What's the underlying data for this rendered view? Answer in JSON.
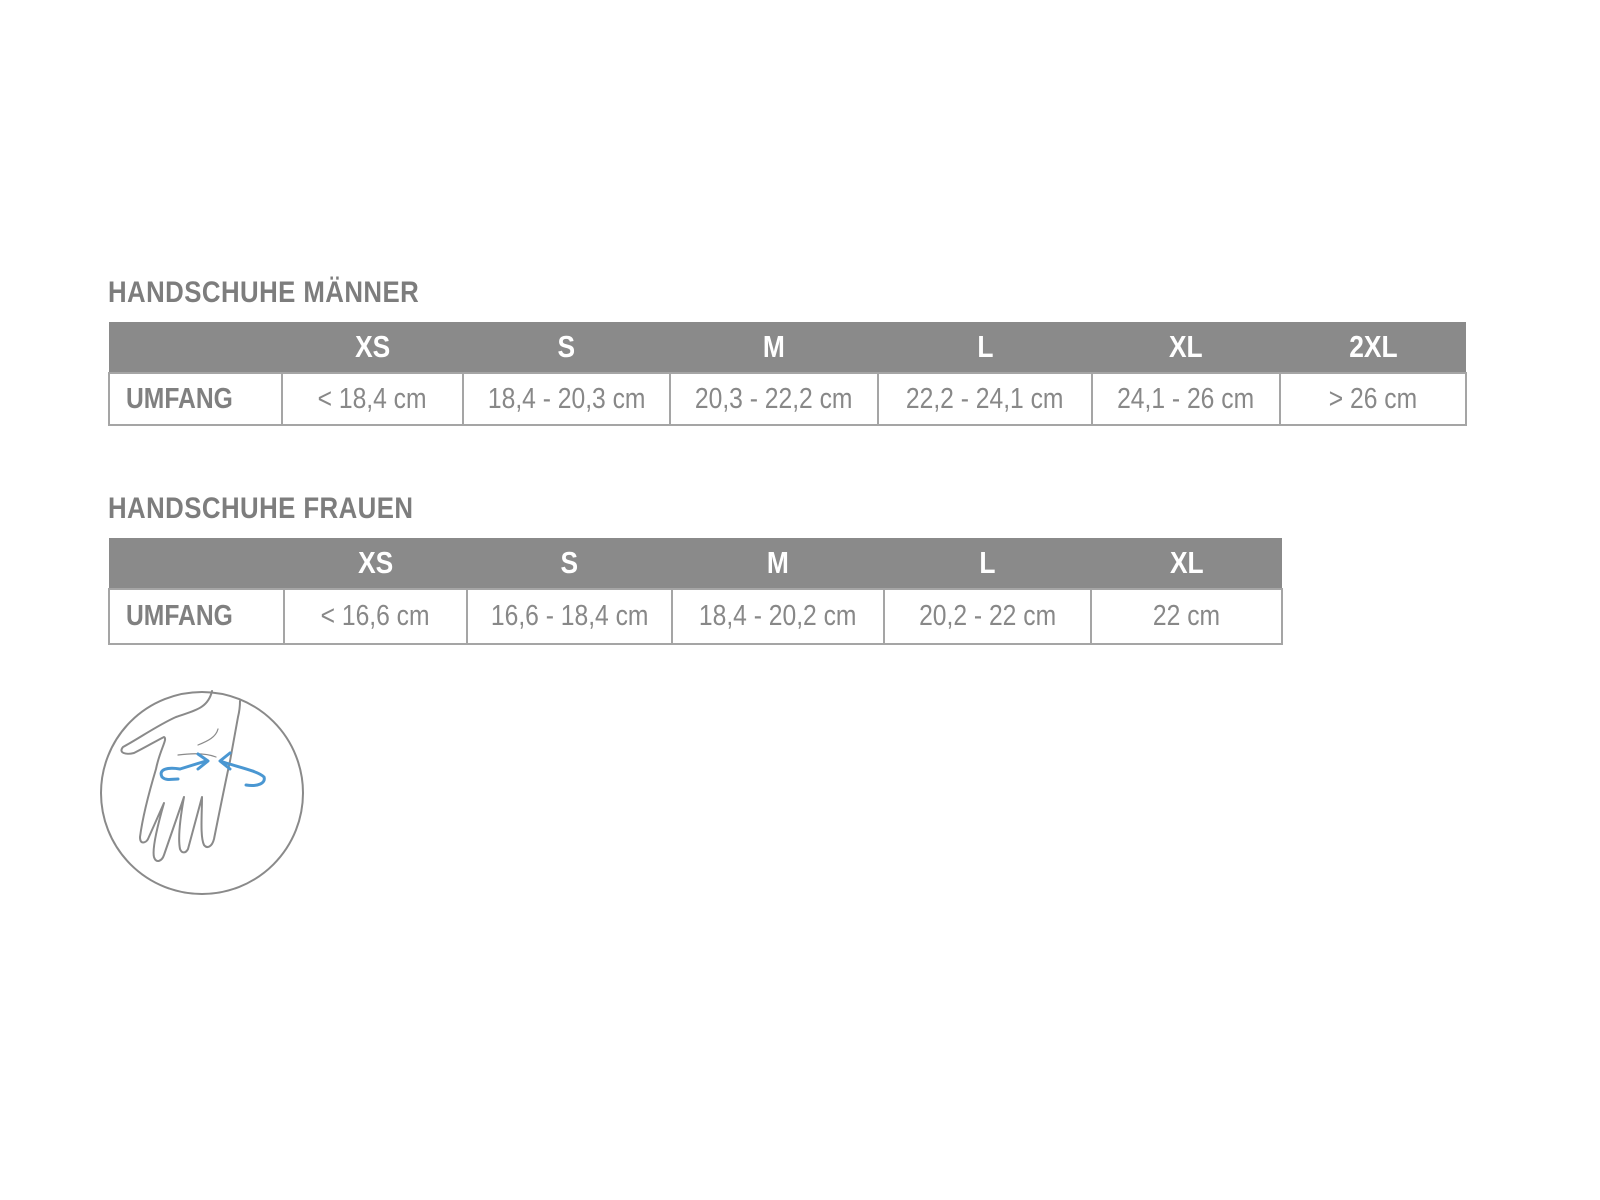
{
  "men": {
    "title": "HANDSCHUHE MÄNNER",
    "sizes": [
      "XS",
      "S",
      "M",
      "L",
      "XL",
      "2XL"
    ],
    "row_label": "UMFANG",
    "values": [
      "< 18,4 cm",
      "18,4 - 20,3 cm",
      "20,3 - 22,2 cm",
      "22,2 - 24,1 cm",
      "24,1 - 26 cm",
      "> 26 cm"
    ]
  },
  "women": {
    "title": "HANDSCHUHE FRAUEN",
    "sizes": [
      "XS",
      "S",
      "M",
      "L",
      "XL"
    ],
    "row_label": "UMFANG",
    "values": [
      "< 16,6 cm",
      "16,6 - 18,4 cm",
      "18,4 - 20,2 cm",
      "20,2 - 22 cm",
      "22 cm"
    ]
  },
  "colors": {
    "header_bg": "#8a8a8a",
    "text": "#888888",
    "border": "#a5a5a5",
    "arrow": "#4a97d2"
  },
  "icons": {
    "illustration": "hand-wrist-measure-icon"
  }
}
